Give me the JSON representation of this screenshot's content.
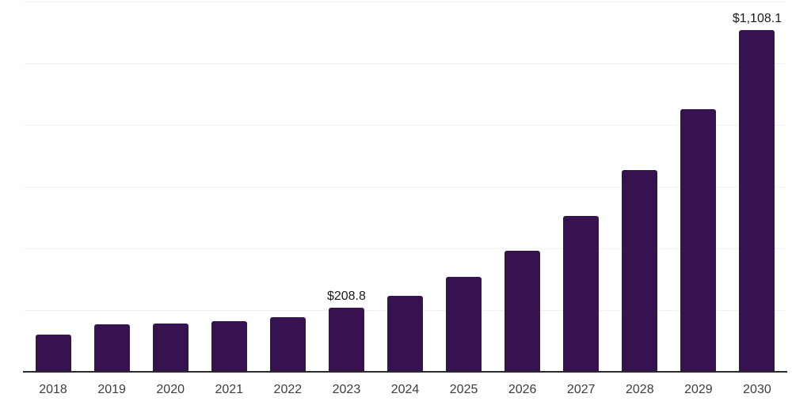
{
  "chart_data": {
    "type": "bar",
    "categories": [
      "2018",
      "2019",
      "2020",
      "2021",
      "2022",
      "2023",
      "2024",
      "2025",
      "2026",
      "2027",
      "2028",
      "2029",
      "2030"
    ],
    "values": [
      120,
      154,
      157,
      164,
      177,
      208.8,
      246,
      308,
      392,
      505,
      654,
      852,
      1108.1
    ],
    "data_labels": [
      null,
      null,
      null,
      null,
      null,
      "$208.8",
      null,
      null,
      null,
      null,
      null,
      null,
      "$1,108.1"
    ],
    "series_name": "",
    "title": "",
    "xlabel": "",
    "ylabel": "",
    "ylim": [
      0,
      1200
    ],
    "gridline_values": [
      200,
      400,
      600,
      800,
      1000,
      1200
    ],
    "grid": "horizontal-only, no y-axis tick labels",
    "legend_position": "none",
    "colors": {
      "bar": "#371250",
      "gridline": "#F1F1F1",
      "axis_line": "#2B2B2B",
      "tick_label": "#3D3D3D",
      "data_label": "#1A1A1A",
      "background": "#FFFFFF"
    }
  }
}
